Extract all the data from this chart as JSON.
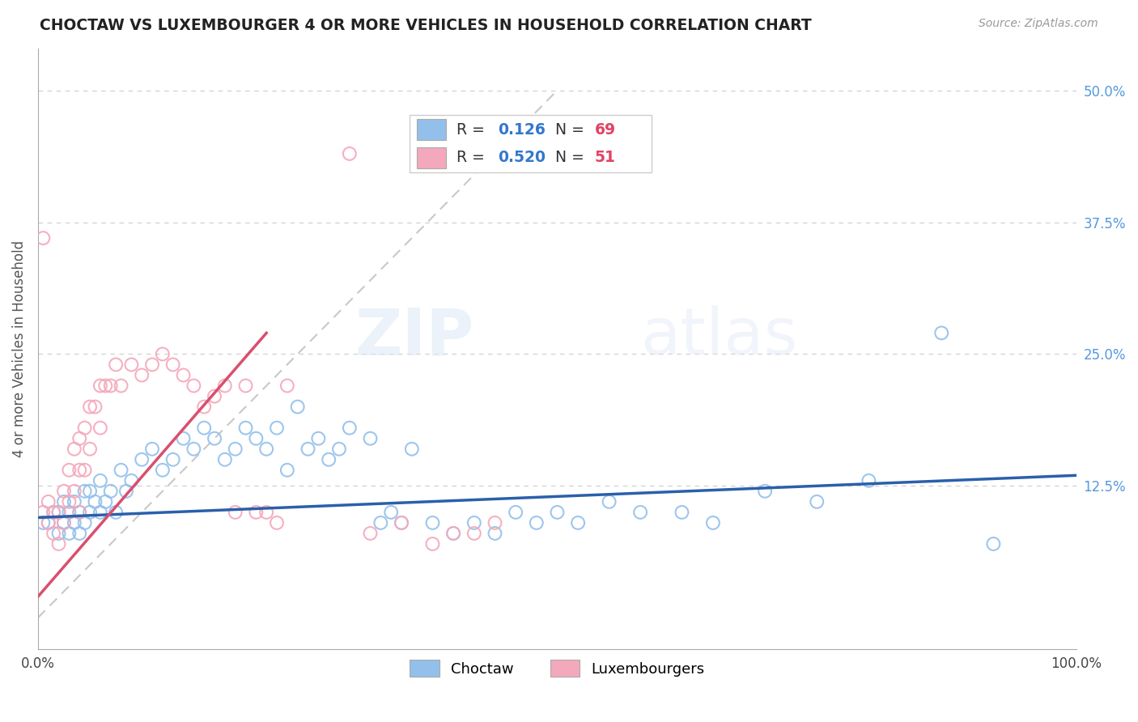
{
  "title": "CHOCTAW VS LUXEMBOURGER 4 OR MORE VEHICLES IN HOUSEHOLD CORRELATION CHART",
  "source": "Source: ZipAtlas.com",
  "ylabel": "4 or more Vehicles in Household",
  "legend_blue_label": "Choctaw",
  "legend_pink_label": "Luxembourgers",
  "R_blue": 0.126,
  "N_blue": 69,
  "R_pink": 0.52,
  "N_pink": 51,
  "color_blue": "#92c0eb",
  "color_pink": "#f4a8bb",
  "color_blue_line": "#2b5faa",
  "color_pink_line": "#d94f6e",
  "color_diag": "#c8c8c8",
  "watermark_zip": "ZIP",
  "watermark_atlas": "atlas",
  "xlim": [
    0.0,
    1.0
  ],
  "ylim": [
    -0.03,
    0.54
  ],
  "right_yticks": [
    0.0,
    0.125,
    0.25,
    0.375,
    0.5
  ],
  "right_yticklabels": [
    "",
    "12.5%",
    "25.0%",
    "37.5%",
    "50.0%"
  ],
  "blue_x": [
    0.005,
    0.01,
    0.015,
    0.02,
    0.02,
    0.025,
    0.025,
    0.03,
    0.03,
    0.035,
    0.035,
    0.04,
    0.04,
    0.045,
    0.045,
    0.05,
    0.05,
    0.055,
    0.06,
    0.06,
    0.065,
    0.07,
    0.075,
    0.08,
    0.085,
    0.09,
    0.1,
    0.11,
    0.12,
    0.13,
    0.14,
    0.15,
    0.16,
    0.17,
    0.18,
    0.19,
    0.2,
    0.21,
    0.22,
    0.23,
    0.24,
    0.25,
    0.26,
    0.27,
    0.28,
    0.29,
    0.3,
    0.32,
    0.33,
    0.34,
    0.35,
    0.36,
    0.38,
    0.4,
    0.42,
    0.44,
    0.46,
    0.48,
    0.5,
    0.52,
    0.55,
    0.58,
    0.62,
    0.65,
    0.7,
    0.75,
    0.8,
    0.87,
    0.92
  ],
  "blue_y": [
    0.09,
    0.09,
    0.1,
    0.08,
    0.1,
    0.09,
    0.11,
    0.08,
    0.1,
    0.09,
    0.11,
    0.08,
    0.1,
    0.09,
    0.12,
    0.1,
    0.12,
    0.11,
    0.1,
    0.13,
    0.11,
    0.12,
    0.1,
    0.14,
    0.12,
    0.13,
    0.15,
    0.16,
    0.14,
    0.15,
    0.17,
    0.16,
    0.18,
    0.17,
    0.15,
    0.16,
    0.18,
    0.17,
    0.16,
    0.18,
    0.14,
    0.2,
    0.16,
    0.17,
    0.15,
    0.16,
    0.18,
    0.17,
    0.09,
    0.1,
    0.09,
    0.16,
    0.09,
    0.08,
    0.09,
    0.08,
    0.1,
    0.09,
    0.1,
    0.09,
    0.11,
    0.1,
    0.1,
    0.09,
    0.12,
    0.11,
    0.13,
    0.27,
    0.07
  ],
  "pink_x": [
    0.005,
    0.01,
    0.01,
    0.015,
    0.015,
    0.02,
    0.02,
    0.025,
    0.025,
    0.03,
    0.03,
    0.035,
    0.035,
    0.04,
    0.04,
    0.04,
    0.045,
    0.045,
    0.05,
    0.05,
    0.055,
    0.06,
    0.06,
    0.065,
    0.07,
    0.075,
    0.08,
    0.09,
    0.1,
    0.11,
    0.12,
    0.13,
    0.14,
    0.15,
    0.16,
    0.17,
    0.18,
    0.19,
    0.2,
    0.21,
    0.22,
    0.23,
    0.24,
    0.3,
    0.32,
    0.35,
    0.38,
    0.4,
    0.42,
    0.44,
    0.005
  ],
  "pink_y": [
    0.1,
    0.09,
    0.11,
    0.1,
    0.08,
    0.1,
    0.07,
    0.12,
    0.09,
    0.14,
    0.11,
    0.16,
    0.12,
    0.17,
    0.14,
    0.1,
    0.18,
    0.14,
    0.2,
    0.16,
    0.2,
    0.22,
    0.18,
    0.22,
    0.22,
    0.24,
    0.22,
    0.24,
    0.23,
    0.24,
    0.25,
    0.24,
    0.23,
    0.22,
    0.2,
    0.21,
    0.22,
    0.1,
    0.22,
    0.1,
    0.1,
    0.09,
    0.22,
    0.44,
    0.08,
    0.09,
    0.07,
    0.08,
    0.08,
    0.09,
    0.36
  ]
}
